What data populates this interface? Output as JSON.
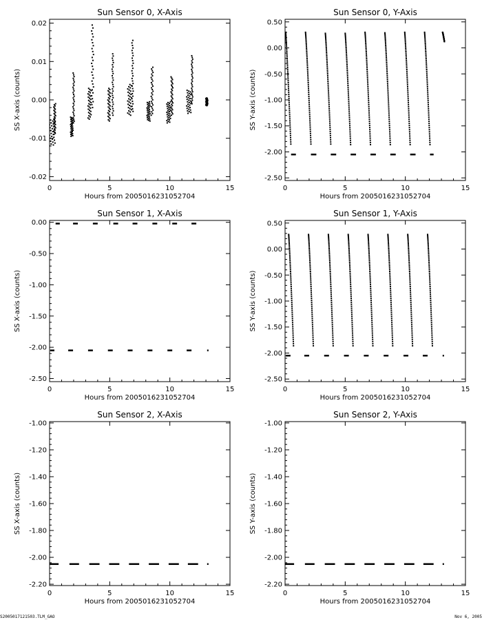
{
  "footer": {
    "left": "S2005017121503.TLM_GAO",
    "right": "Nov 6, 2005"
  },
  "chart_data": [
    {
      "type": "scatter",
      "title": "Sun Sensor 0, X-Axis",
      "xlabel": "Hours from 2005016231052704",
      "ylabel": "SS X-axis (counts)",
      "xlim": [
        0,
        15
      ],
      "ylim": [
        -0.021,
        0.021
      ],
      "xticks": [
        0,
        5,
        10,
        15
      ],
      "yticks": [
        -0.02,
        -0.01,
        0.0,
        0.01,
        0.02
      ],
      "yticklabels": [
        "-0.02",
        "-0.01",
        "0.00",
        "0.01",
        "0.02"
      ],
      "segments": [
        {
          "x0": 0.0,
          "x1": 0.45,
          "ylo": -0.012,
          "yhi": -0.005
        },
        {
          "x0": 0.35,
          "x1": 0.5,
          "ylo": -0.009,
          "yhi": -0.001
        },
        {
          "x0": 1.75,
          "x1": 1.95,
          "ylo": -0.0095,
          "yhi": -0.0045
        },
        {
          "x0": 1.95,
          "x1": 2.05,
          "ylo": -0.006,
          "yhi": 0.007
        },
        {
          "x0": 3.2,
          "x1": 3.45,
          "ylo": -0.005,
          "yhi": 0.003
        },
        {
          "x0": 3.5,
          "x1": 3.65,
          "ylo": -0.002,
          "yhi": 0.0195
        },
        {
          "x0": 4.85,
          "x1": 5.05,
          "ylo": -0.0055,
          "yhi": 0.003
        },
        {
          "x0": 5.2,
          "x1": 5.3,
          "ylo": -0.004,
          "yhi": 0.012
        },
        {
          "x0": 6.5,
          "x1": 6.8,
          "ylo": -0.004,
          "yhi": 0.004
        },
        {
          "x0": 6.85,
          "x1": 6.95,
          "ylo": -0.003,
          "yhi": 0.0155
        },
        {
          "x0": 8.1,
          "x1": 8.35,
          "ylo": -0.0055,
          "yhi": -0.0005
        },
        {
          "x0": 8.45,
          "x1": 8.6,
          "ylo": -0.004,
          "yhi": 0.0085
        },
        {
          "x0": 9.75,
          "x1": 10.05,
          "ylo": -0.006,
          "yhi": -0.0005
        },
        {
          "x0": 10.1,
          "x1": 10.25,
          "ylo": -0.004,
          "yhi": 0.006
        },
        {
          "x0": 11.4,
          "x1": 11.75,
          "ylo": -0.0035,
          "yhi": 0.0025
        },
        {
          "x0": 11.8,
          "x1": 11.9,
          "ylo": -0.001,
          "yhi": 0.0115
        },
        {
          "x0": 13.0,
          "x1": 13.15,
          "ylo": -0.0015,
          "yhi": 0.0005
        }
      ]
    },
    {
      "type": "scatter",
      "title": "Sun Sensor 0, Y-Axis",
      "xlabel": "Hours from 2005016231052704",
      "ylabel": "SS Y-axis (counts)",
      "xlim": [
        0,
        15
      ],
      "ylim": [
        -2.55,
        0.55
      ],
      "xticks": [
        0,
        5,
        10,
        15
      ],
      "yticks": [
        -2.5,
        -2.0,
        -1.5,
        -1.0,
        -0.5,
        0.0,
        0.5
      ],
      "yticklabels": [
        "-2.50",
        "-2.00",
        "-1.50",
        "-1.00",
        "-0.50",
        "0.00",
        "0.50"
      ],
      "sweeps": [
        {
          "x0": 0.05,
          "x1": 0.48,
          "ytop": 0.3,
          "ybot": -1.85
        },
        {
          "x0": 1.7,
          "x1": 2.15,
          "ytop": 0.3,
          "ybot": -1.85
        },
        {
          "x0": 3.35,
          "x1": 3.8,
          "ytop": 0.28,
          "ybot": -1.85
        },
        {
          "x0": 5.0,
          "x1": 5.45,
          "ytop": 0.28,
          "ybot": -1.86
        },
        {
          "x0": 6.65,
          "x1": 7.1,
          "ytop": 0.3,
          "ybot": -1.86
        },
        {
          "x0": 8.3,
          "x1": 8.75,
          "ytop": 0.29,
          "ybot": -1.86
        },
        {
          "x0": 9.95,
          "x1": 10.4,
          "ytop": 0.3,
          "ybot": -1.86
        },
        {
          "x0": 11.6,
          "x1": 12.05,
          "ytop": 0.3,
          "ybot": -1.86
        }
      ],
      "bursts": [
        {
          "x0": 13.1,
          "x1": 13.25,
          "ytop": 0.3,
          "ybot": 0.12
        }
      ],
      "dashes": {
        "y": -2.05,
        "ranges": [
          [
            0.5,
            0.9
          ],
          [
            2.15,
            2.6
          ],
          [
            3.8,
            4.25
          ],
          [
            5.45,
            5.9
          ],
          [
            7.1,
            7.55
          ],
          [
            8.75,
            9.2
          ],
          [
            10.4,
            10.85
          ],
          [
            12.05,
            12.35
          ]
        ]
      }
    },
    {
      "type": "scatter",
      "title": "Sun Sensor 1, X-Axis",
      "xlabel": "Hours from 2005016231052704",
      "ylabel": "SS X-axis (counts)",
      "xlim": [
        0,
        15
      ],
      "ylim": [
        -2.55,
        0.03
      ],
      "xticks": [
        0,
        5,
        10,
        15
      ],
      "yticks": [
        -2.5,
        -2.0,
        -1.5,
        -1.0,
        -0.5,
        0.0
      ],
      "yticklabels": [
        "-2.50",
        "-2.00",
        "-1.50",
        "-1.00",
        "-0.50",
        "0.00"
      ],
      "dash_sets": [
        {
          "y": -0.02,
          "ranges": [
            [
              0.5,
              0.85
            ],
            [
              1.95,
              2.35
            ],
            [
              3.6,
              4.0
            ],
            [
              5.3,
              5.7
            ],
            [
              6.9,
              7.3
            ],
            [
              8.55,
              8.95
            ],
            [
              10.2,
              10.6
            ],
            [
              11.8,
              12.2
            ]
          ]
        },
        {
          "y": -2.05,
          "ranges": [
            [
              0.05,
              0.4
            ],
            [
              1.55,
              1.95
            ],
            [
              3.2,
              3.6
            ],
            [
              4.85,
              5.25
            ],
            [
              6.5,
              6.9
            ],
            [
              8.15,
              8.55
            ],
            [
              9.8,
              10.2
            ],
            [
              11.4,
              11.8
            ],
            [
              13.1,
              13.15
            ]
          ]
        }
      ]
    },
    {
      "type": "scatter",
      "title": "Sun Sensor 1, Y-Axis",
      "xlabel": "Hours from 2005016231052704",
      "ylabel": "SS Y-axis (counts)",
      "xlim": [
        0,
        15
      ],
      "ylim": [
        -2.55,
        0.55
      ],
      "xticks": [
        0,
        5,
        10,
        15
      ],
      "yticks": [
        -2.5,
        -2.0,
        -1.5,
        -1.0,
        -0.5,
        0.0,
        0.5
      ],
      "yticklabels": [
        "-2.50",
        "-2.00",
        "-1.50",
        "-1.00",
        "-0.50",
        "0.00",
        "0.50"
      ],
      "sweeps": [
        {
          "x0": 0.3,
          "x1": 0.7,
          "ytop": 0.28,
          "ybot": -1.86
        },
        {
          "x0": 1.95,
          "x1": 2.35,
          "ytop": 0.28,
          "ybot": -1.86
        },
        {
          "x0": 3.6,
          "x1": 4.0,
          "ytop": 0.28,
          "ybot": -1.86
        },
        {
          "x0": 5.25,
          "x1": 5.65,
          "ytop": 0.28,
          "ybot": -1.86
        },
        {
          "x0": 6.9,
          "x1": 7.3,
          "ytop": 0.28,
          "ybot": -1.86
        },
        {
          "x0": 8.55,
          "x1": 8.95,
          "ytop": 0.28,
          "ybot": -1.86
        },
        {
          "x0": 10.2,
          "x1": 10.6,
          "ytop": 0.28,
          "ybot": -1.86
        },
        {
          "x0": 11.85,
          "x1": 12.25,
          "ytop": 0.28,
          "ybot": -1.86
        }
      ],
      "dashes": {
        "y": -2.05,
        "ranges": [
          [
            0.05,
            0.45
          ],
          [
            1.6,
            2.0
          ],
          [
            3.25,
            3.65
          ],
          [
            4.9,
            5.3
          ],
          [
            6.55,
            6.95
          ],
          [
            8.2,
            8.6
          ],
          [
            9.85,
            10.25
          ],
          [
            11.45,
            11.85
          ],
          [
            13.1,
            13.15
          ]
        ]
      }
    },
    {
      "type": "scatter",
      "title": "Sun Sensor 2, X-Axis",
      "xlabel": "Hours from 2005016231052704",
      "ylabel": "SS X-axis (counts)",
      "xlim": [
        0,
        15
      ],
      "ylim": [
        -2.21,
        -0.99
      ],
      "xticks": [
        0,
        5,
        10,
        15
      ],
      "yticks": [
        -2.2,
        -2.0,
        -1.8,
        -1.6,
        -1.4,
        -1.2,
        -1.0
      ],
      "yticklabels": [
        "-2.20",
        "-2.00",
        "-1.80",
        "-1.60",
        "-1.40",
        "-1.20",
        "-1.00"
      ],
      "dash_sets": [
        {
          "y": -2.05,
          "ranges": [
            [
              0.0,
              0.75
            ],
            [
              1.65,
              2.45
            ],
            [
              3.3,
              4.15
            ],
            [
              4.95,
              5.8
            ],
            [
              6.6,
              7.45
            ],
            [
              8.25,
              9.1
            ],
            [
              9.9,
              10.75
            ],
            [
              11.5,
              12.35
            ],
            [
              13.1,
              13.15
            ]
          ]
        }
      ]
    },
    {
      "type": "scatter",
      "title": "Sun Sensor 2, Y-Axis",
      "xlabel": "Hours from 2005016231052704",
      "ylabel": "SS Y-axis (counts)",
      "xlim": [
        0,
        15
      ],
      "ylim": [
        -2.21,
        -0.99
      ],
      "xticks": [
        0,
        5,
        10,
        15
      ],
      "yticks": [
        -2.2,
        -2.0,
        -1.8,
        -1.6,
        -1.4,
        -1.2,
        -1.0
      ],
      "yticklabels": [
        "-2.20",
        "-2.00",
        "-1.80",
        "-1.60",
        "-1.40",
        "-1.20",
        "-1.00"
      ],
      "dash_sets": [
        {
          "y": -2.05,
          "ranges": [
            [
              0.0,
              0.75
            ],
            [
              1.65,
              2.45
            ],
            [
              3.3,
              4.15
            ],
            [
              4.95,
              5.8
            ],
            [
              6.6,
              7.45
            ],
            [
              8.25,
              9.1
            ],
            [
              9.9,
              10.75
            ],
            [
              11.5,
              12.35
            ],
            [
              13.1,
              13.15
            ]
          ]
        }
      ]
    }
  ]
}
